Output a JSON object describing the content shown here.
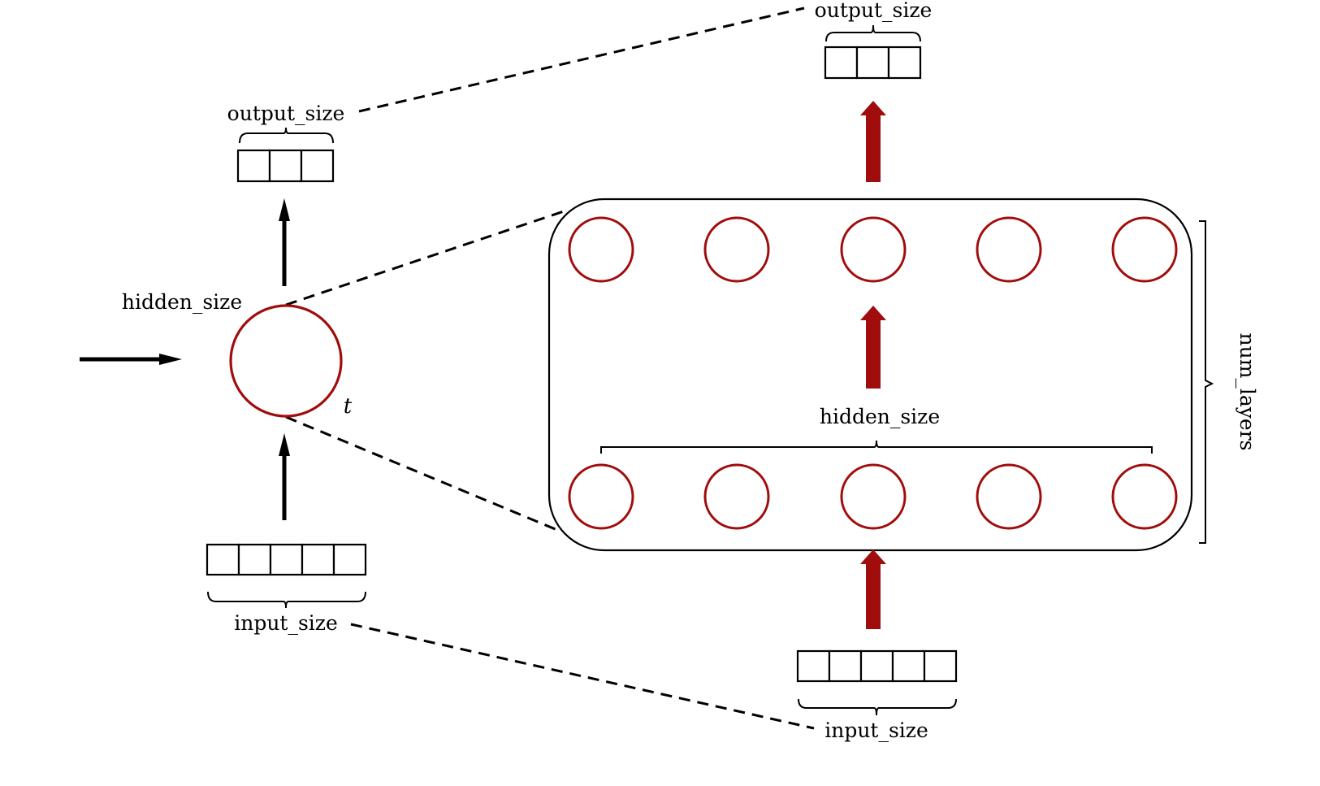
{
  "labels": {
    "left_output": "output_size",
    "left_hidden": "hidden_size",
    "left_input": "input_size",
    "time_step": "t",
    "right_output": "output_size",
    "right_hidden": "hidden_size",
    "right_input": "input_size",
    "num_layers": "num_layers"
  },
  "structure": {
    "left_output_cells": 3,
    "left_input_cells": 5,
    "right_output_cells": 3,
    "right_input_cells": 5,
    "neurons_per_layer": 5,
    "layers": 2
  },
  "colors": {
    "neuron_stroke": "#a10c0c",
    "red_arrow": "#a10c0c",
    "line": "#000000",
    "background": "#ffffff"
  }
}
